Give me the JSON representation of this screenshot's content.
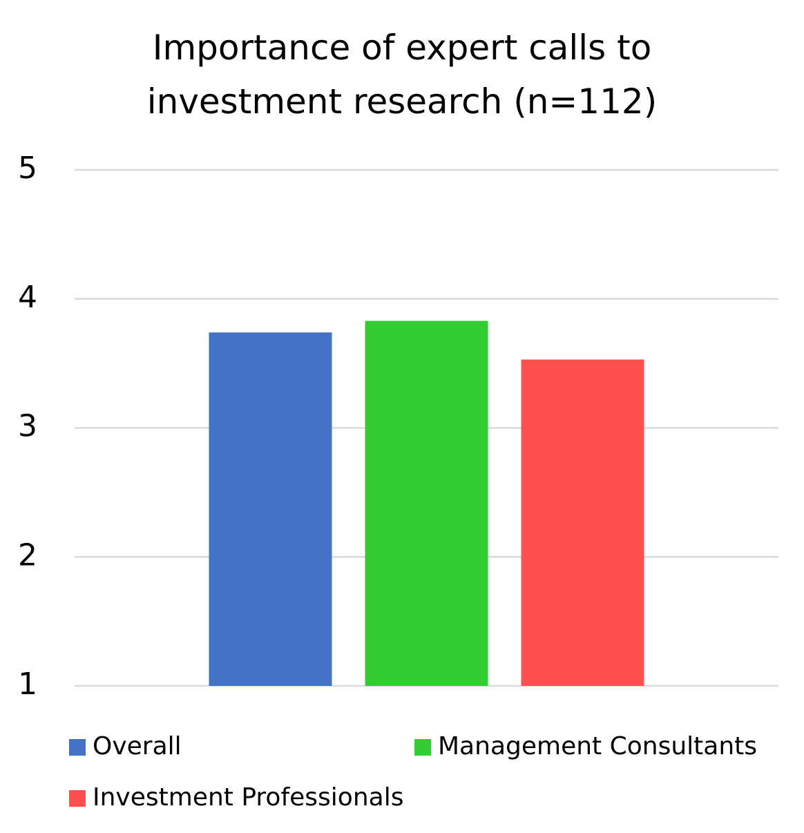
{
  "chart_data": {
    "type": "bar",
    "title": "Importance of expert calls to investment research (n=112)",
    "categories": [
      null
    ],
    "series": [
      {
        "name": "Overall",
        "color": "#4472c4",
        "values": [
          3.74
        ]
      },
      {
        "name": "Management Consultants",
        "color": "#33cc33",
        "values": [
          3.83
        ]
      },
      {
        "name": "Investment Professionals",
        "color": "#ff5050",
        "values": [
          3.53
        ]
      }
    ],
    "ylim": [
      1,
      5
    ],
    "yticks": [
      1,
      2,
      3,
      4,
      5
    ],
    "grid": true,
    "legend": "bottom"
  }
}
